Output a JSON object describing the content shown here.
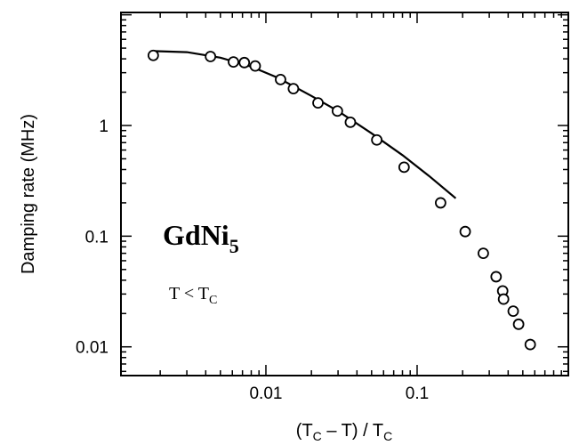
{
  "chart_data": {
    "type": "scatter",
    "title": "",
    "xlabel": {
      "open": "(T",
      "sub1": "C",
      "mid": " – T) / T",
      "sub2": "C"
    },
    "ylabel": "Damping rate (MHz)",
    "xscale": "log",
    "yscale": "log",
    "xlim": [
      0.0011,
      1.0
    ],
    "ylim": [
      0.0055,
      10.5
    ],
    "xticks": [
      {
        "value": 0.01,
        "label": "0.01"
      },
      {
        "value": 0.1,
        "label": "0.1"
      }
    ],
    "yticks": [
      {
        "value": 0.01,
        "label": "0.01"
      },
      {
        "value": 0.1,
        "label": "0.1"
      },
      {
        "value": 1,
        "label": "1"
      }
    ],
    "annotations": {
      "compound": {
        "base": "GdNi",
        "sub": "5"
      },
      "condition": {
        "base": "T < T",
        "sub": "C"
      }
    },
    "series": [
      {
        "type": "scatter",
        "marker": "open-circle",
        "x": [
          0.0018,
          0.0043,
          0.0061,
          0.0072,
          0.0085,
          0.0125,
          0.0152,
          0.0221,
          0.0297,
          0.0362,
          0.0541,
          0.082,
          0.143,
          0.208,
          0.274,
          0.333,
          0.368,
          0.373,
          0.432,
          0.469,
          0.56
        ],
        "y": [
          4.3,
          4.2,
          3.75,
          3.7,
          3.45,
          2.6,
          2.15,
          1.6,
          1.35,
          1.07,
          0.74,
          0.42,
          0.2,
          0.11,
          0.07,
          0.043,
          0.032,
          0.027,
          0.021,
          0.016,
          0.0105
        ]
      },
      {
        "type": "line",
        "x": [
          0.0018,
          0.003,
          0.005,
          0.008,
          0.012,
          0.02,
          0.03,
          0.05,
          0.08,
          0.12,
          0.18
        ],
        "y": [
          4.7,
          4.6,
          4.1,
          3.4,
          2.7,
          1.85,
          1.35,
          0.85,
          0.54,
          0.35,
          0.22
        ]
      }
    ]
  }
}
